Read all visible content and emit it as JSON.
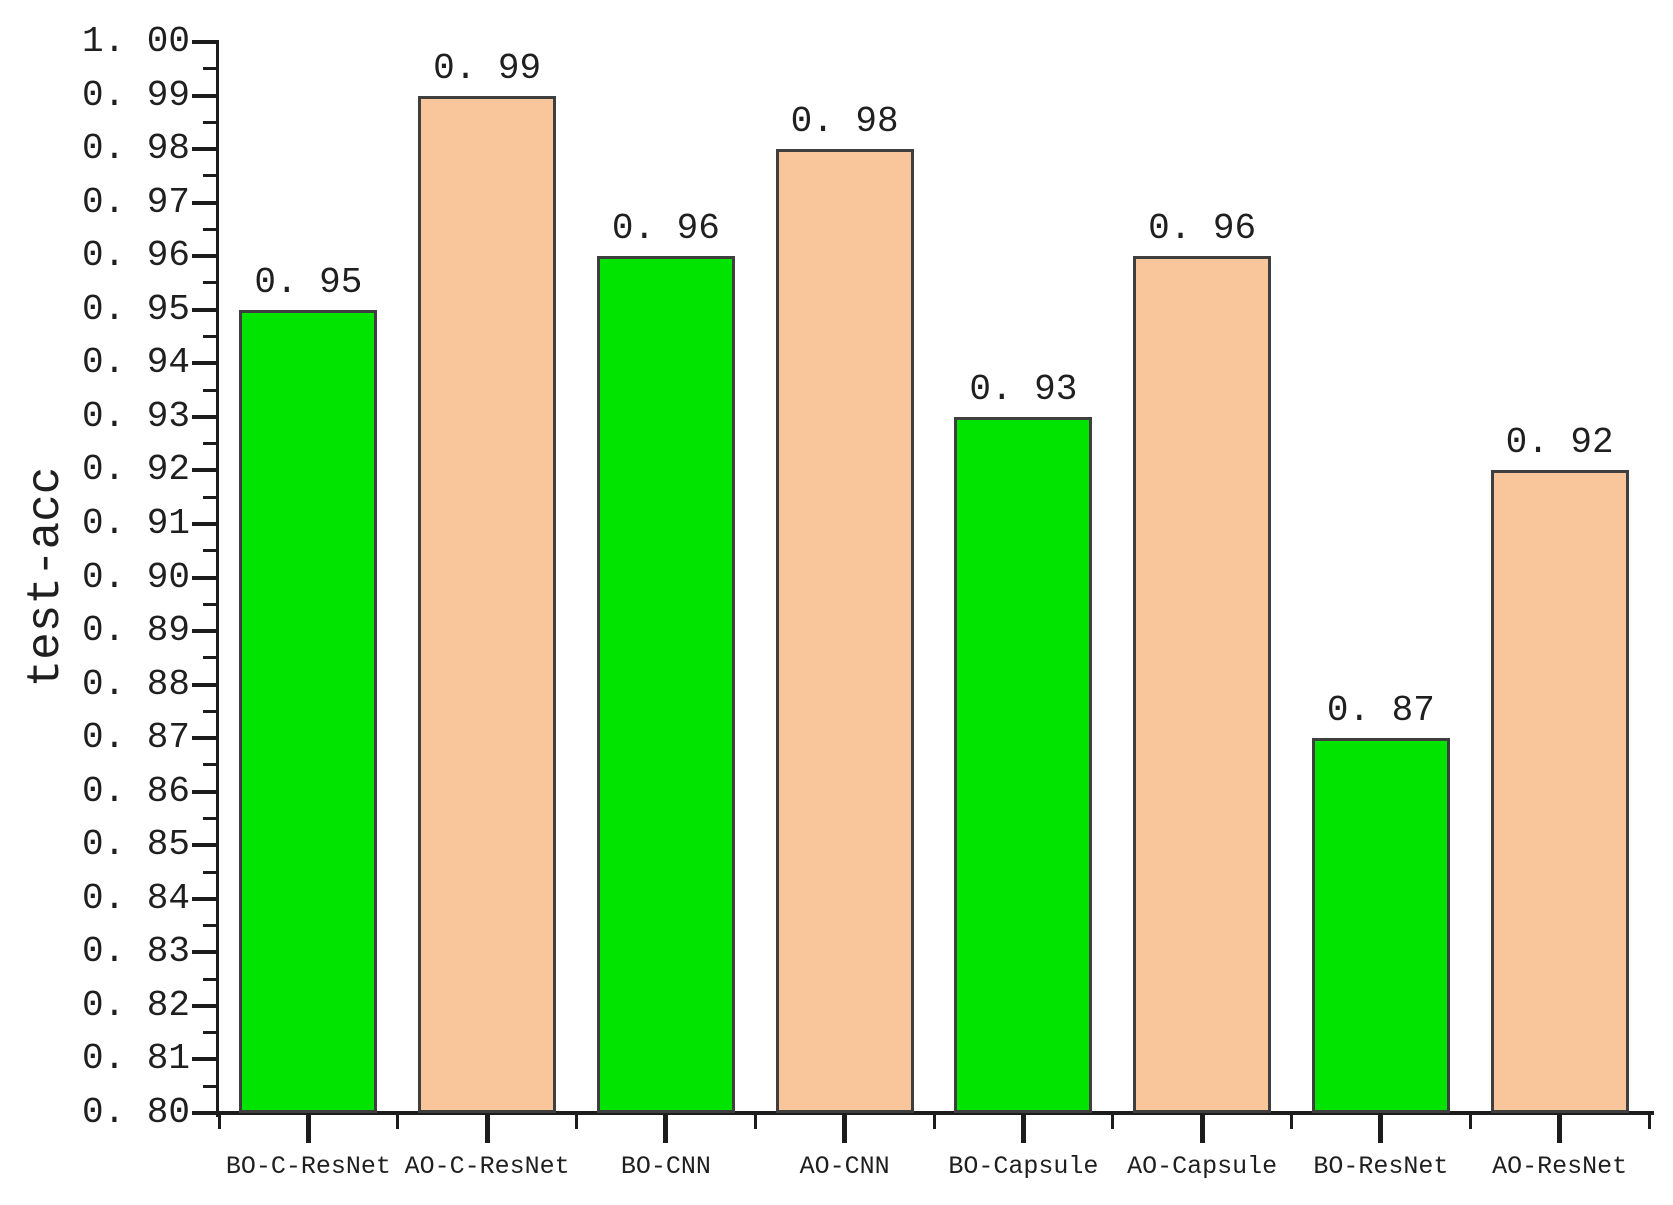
{
  "chart_data": {
    "type": "bar",
    "title": "",
    "xlabel": "",
    "ylabel": "test-acc",
    "ylim": [
      0.8,
      1.0
    ],
    "ytick_step": 0.01,
    "yminor_step": 0.005,
    "grid": false,
    "legend_position": "none",
    "categories": [
      "BO-C-ResNet",
      "AO-C-ResNet",
      "BO-CNN",
      "AO-CNN",
      "BO-Capsule",
      "AO-Capsule",
      "BO-ResNet",
      "AO-ResNet"
    ],
    "values": [
      0.95,
      0.99,
      0.96,
      0.98,
      0.93,
      0.96,
      0.87,
      0.92
    ],
    "value_labels": [
      "0. 95",
      "0. 99",
      "0. 96",
      "0. 98",
      "0. 93",
      "0. 96",
      "0. 87",
      "0. 92"
    ],
    "ytick_labels": [
      "0. 80",
      "0. 81",
      "0. 82",
      "0. 83",
      "0. 84",
      "0. 85",
      "0. 86",
      "0. 87",
      "0. 88",
      "0. 89",
      "0. 90",
      "0. 91",
      "0. 92",
      "0. 93",
      "0. 94",
      "0. 95",
      "0. 96",
      "0. 97",
      "0. 98",
      "0. 99",
      "1. 00"
    ],
    "colors": {
      "bar_pattern": [
        "#00e400",
        "#f9c69c",
        "#00e400",
        "#f9c69c",
        "#00e400",
        "#f9c69c",
        "#00e400",
        "#f9c69c"
      ],
      "bar_green": "#00e400",
      "bar_peach": "#f9c69c",
      "bar_border": "#3f3f3f",
      "axis": "#1c1c1c",
      "text": "#1f1f1f",
      "background": "#ffffff"
    }
  }
}
